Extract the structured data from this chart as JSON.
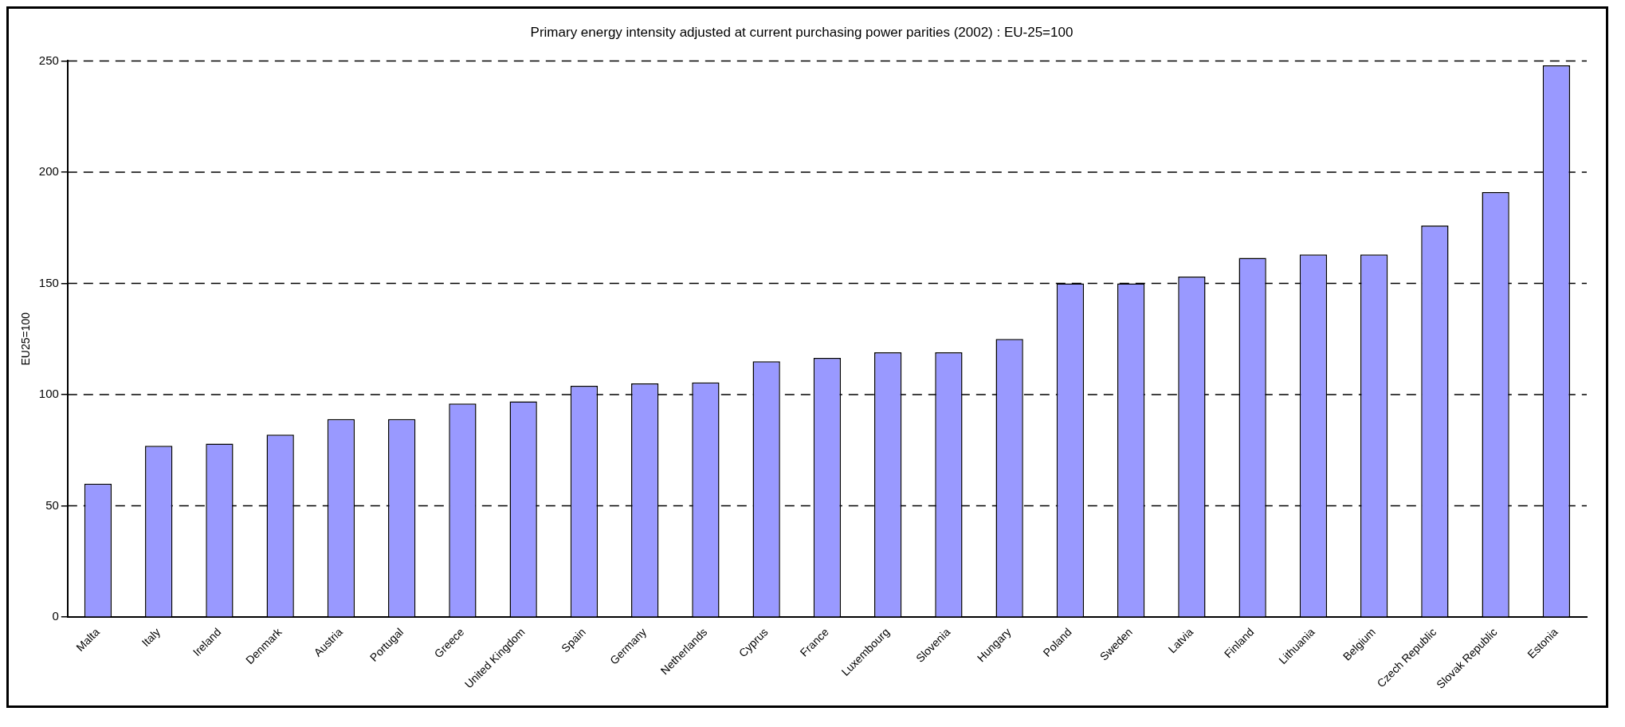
{
  "chart_data": {
    "type": "bar",
    "title": "Primary energy intensity adjusted at current purchasing power parities (2002) : EU-25=100",
    "ylabel": "EU25=100",
    "categories": [
      "Malta",
      "Italy",
      "Ireland",
      "Denmark",
      "Austria",
      "Portugal",
      "Greece",
      "United Kingdom",
      "Spain",
      "Germany",
      "Netherlands",
      "Cyprus",
      "France",
      "Luxembourg",
      "Slovenia",
      "Hungary",
      "Poland",
      "Sweden",
      "Latvia",
      "Finland",
      "Lithuania",
      "Belgium",
      "Czech Republic",
      "Slovak Republic",
      "Estonia"
    ],
    "values": [
      60,
      77,
      78,
      82,
      89,
      89,
      96,
      97,
      104,
      105,
      105.5,
      115,
      116.5,
      119,
      119,
      125,
      150,
      150,
      153,
      161.5,
      163,
      163,
      176,
      191,
      248
    ],
    "color": "#9999ff",
    "ylim": [
      0,
      250
    ],
    "yticks": [
      0,
      50,
      100,
      150,
      200,
      250
    ],
    "grid": "y",
    "legend": false
  }
}
